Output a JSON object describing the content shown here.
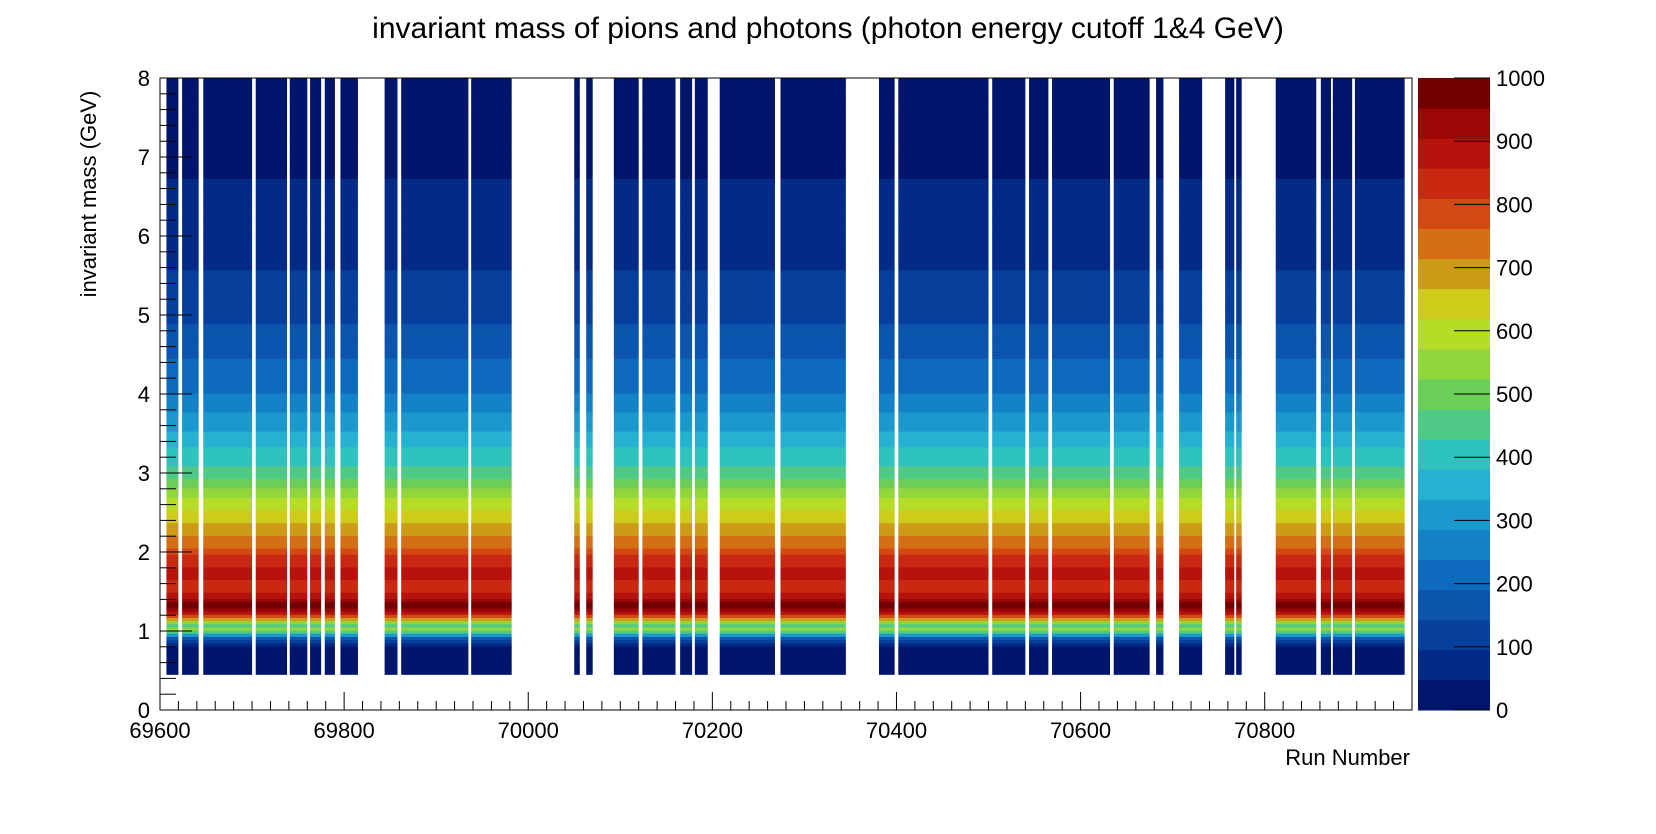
{
  "chart_data": {
    "type": "heatmap",
    "title": "invariant mass of pions and photons (photon energy cutoff 1&4 GeV)",
    "xlabel": "Run Number",
    "ylabel": "invariant mass (GeV)",
    "xlim": [
      69600,
      70960
    ],
    "ylim": [
      0,
      8
    ],
    "x_ticks": [
      "69600",
      "69800",
      "70000",
      "70200",
      "70400",
      "70600",
      "70800"
    ],
    "y_ticks": [
      "0",
      "1",
      "2",
      "3",
      "4",
      "5",
      "6",
      "7",
      "8"
    ],
    "colorbar": {
      "range": [
        0,
        1000
      ],
      "ticks": [
        "0",
        "100",
        "200",
        "300",
        "400",
        "500",
        "600",
        "700",
        "800",
        "900",
        "1000"
      ],
      "colors": [
        "#00156b",
        "#022a86",
        "#063f9c",
        "#0b55ad",
        "#0d6abd",
        "#1382c6",
        "#1b99cd",
        "#25b2d1",
        "#2fc3bd",
        "#4fca86",
        "#6ace57",
        "#91d63b",
        "#b5dd27",
        "#cfcb1a",
        "#cc9c16",
        "#d46f16",
        "#d24913",
        "#c82910",
        "#b7130d",
        "#9a0706",
        "#720000"
      ]
    },
    "mass_range_filled": [
      0.45,
      8
    ],
    "run_bands": [
      [
        69607,
        69620
      ],
      [
        69624,
        69642
      ],
      [
        69647,
        69700
      ],
      [
        69704,
        69738
      ],
      [
        69741,
        69760
      ],
      [
        69763,
        69775
      ],
      [
        69779,
        69790
      ],
      [
        69796,
        69815
      ],
      [
        69844,
        69858
      ],
      [
        69862,
        69935
      ],
      [
        69938,
        69982
      ],
      [
        70050,
        70056
      ],
      [
        70063,
        70070
      ],
      [
        70093,
        70120
      ],
      [
        70124,
        70160
      ],
      [
        70165,
        70178
      ],
      [
        70181,
        70195
      ],
      [
        70208,
        70268
      ],
      [
        70274,
        70345
      ],
      [
        70381,
        70398
      ],
      [
        70402,
        70500
      ],
      [
        70504,
        70540
      ],
      [
        70544,
        70565
      ],
      [
        70569,
        70632
      ],
      [
        70636,
        70675
      ],
      [
        70682,
        70690
      ],
      [
        70707,
        70732
      ],
      [
        70757,
        70767
      ],
      [
        70769,
        70775
      ],
      [
        70812,
        70856
      ],
      [
        70861,
        70872
      ],
      [
        70874,
        70895
      ],
      [
        70898,
        70952
      ]
    ],
    "count_profile": [
      [
        0.45,
        5
      ],
      [
        0.8,
        30
      ],
      [
        0.92,
        200
      ],
      [
        0.97,
        380
      ],
      [
        1.02,
        560
      ],
      [
        1.08,
        420
      ],
      [
        1.12,
        620
      ],
      [
        1.2,
        830
      ],
      [
        1.3,
        980
      ],
      [
        1.38,
        940
      ],
      [
        1.5,
        830
      ],
      [
        1.7,
        870
      ],
      [
        1.9,
        850
      ],
      [
        2.0,
        780
      ],
      [
        2.3,
        690
      ],
      [
        2.6,
        600
      ],
      [
        3.0,
        450
      ],
      [
        3.5,
        340
      ],
      [
        4.0,
        240
      ],
      [
        5.0,
        130
      ],
      [
        6.0,
        70
      ],
      [
        7.0,
        40
      ],
      [
        8.0,
        20
      ]
    ]
  }
}
